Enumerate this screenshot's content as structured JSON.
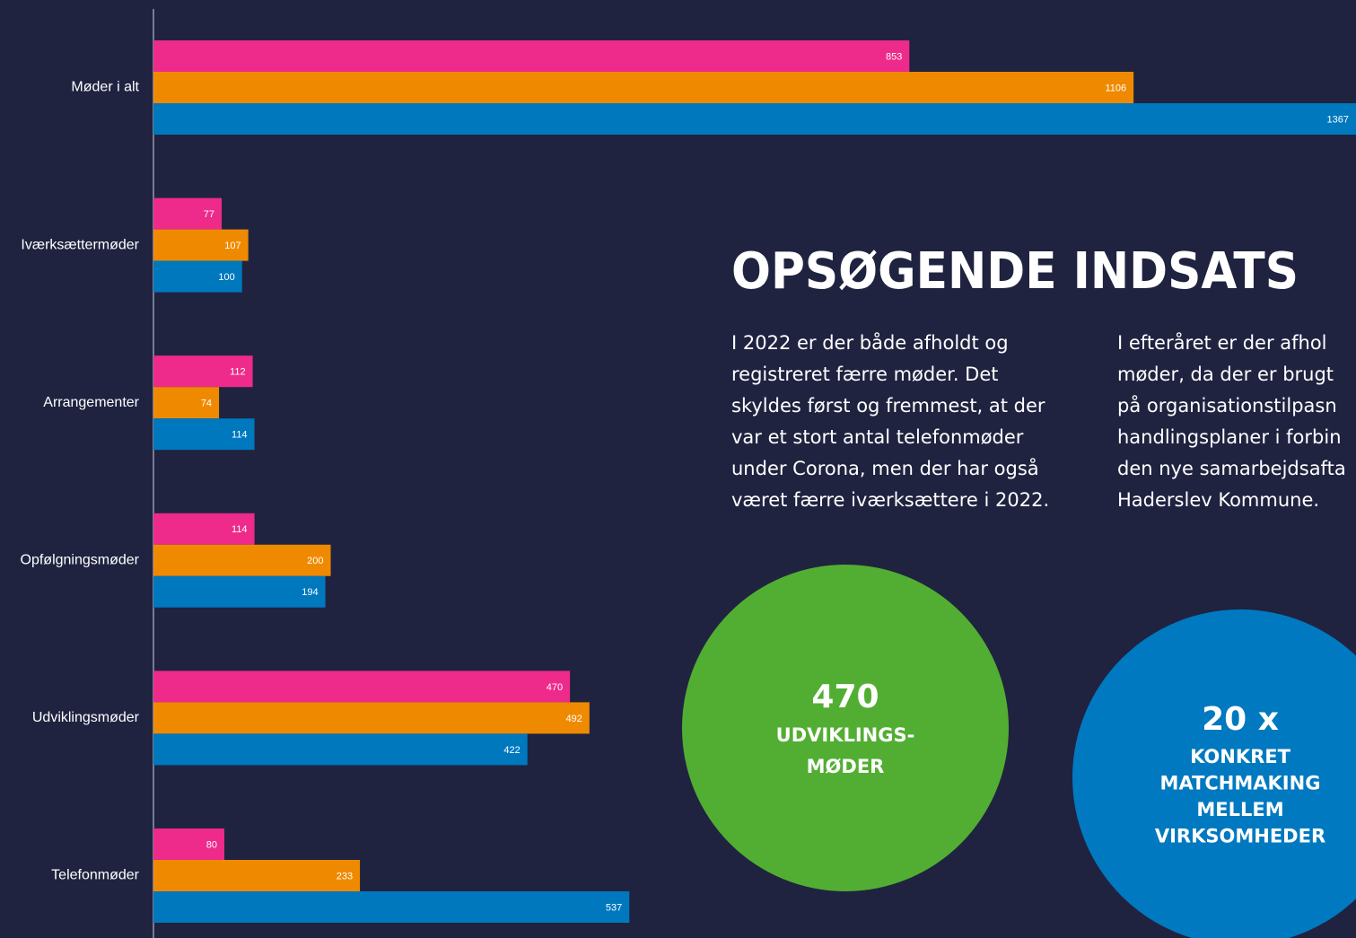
{
  "chart_data": {
    "type": "hbar",
    "categories": [
      "Møder i alt",
      "Iværksættermøder",
      "Arrangementer",
      "Opfølgningsmøder",
      "Udviklingsmøder",
      "Telefonmøder"
    ],
    "series": [
      {
        "color": "#ee2a8a",
        "values": [
          853,
          77,
          112,
          114,
          470,
          80
        ]
      },
      {
        "color": "#ef8a00",
        "values": [
          1106,
          107,
          74,
          200,
          492,
          233
        ]
      },
      {
        "color": "#0078be",
        "values": [
          1367,
          100,
          114,
          194,
          422,
          537
        ]
      }
    ],
    "xlim": [
      0,
      1357
    ]
  },
  "panel": {
    "title": "OPSØGENDE INDSATS",
    "column1": [
      "I 2022 er der både afholdt og",
      "registreret færre møder. Det",
      "skyldes først og fremmest, at der",
      "var et stort antal telefonmøder",
      "under Corona, men der har også",
      "været færre iværksættere i 2022."
    ],
    "column2": [
      "I efteråret er der afhol",
      "møder, da der er brugt",
      "på organisationstilpasn",
      "handlingsplaner i forbin",
      "den nye samarbejdsafta",
      "Haderslev Kommune."
    ],
    "circle1": {
      "number": "470",
      "lines": [
        "UDVIKLINGS-",
        "MØDER"
      ]
    },
    "circle2": {
      "number": "20 x",
      "lines": [
        "KONKRET",
        "MATCHMAKING",
        "MELLEM",
        "VIRKSOMHEDER"
      ]
    }
  }
}
